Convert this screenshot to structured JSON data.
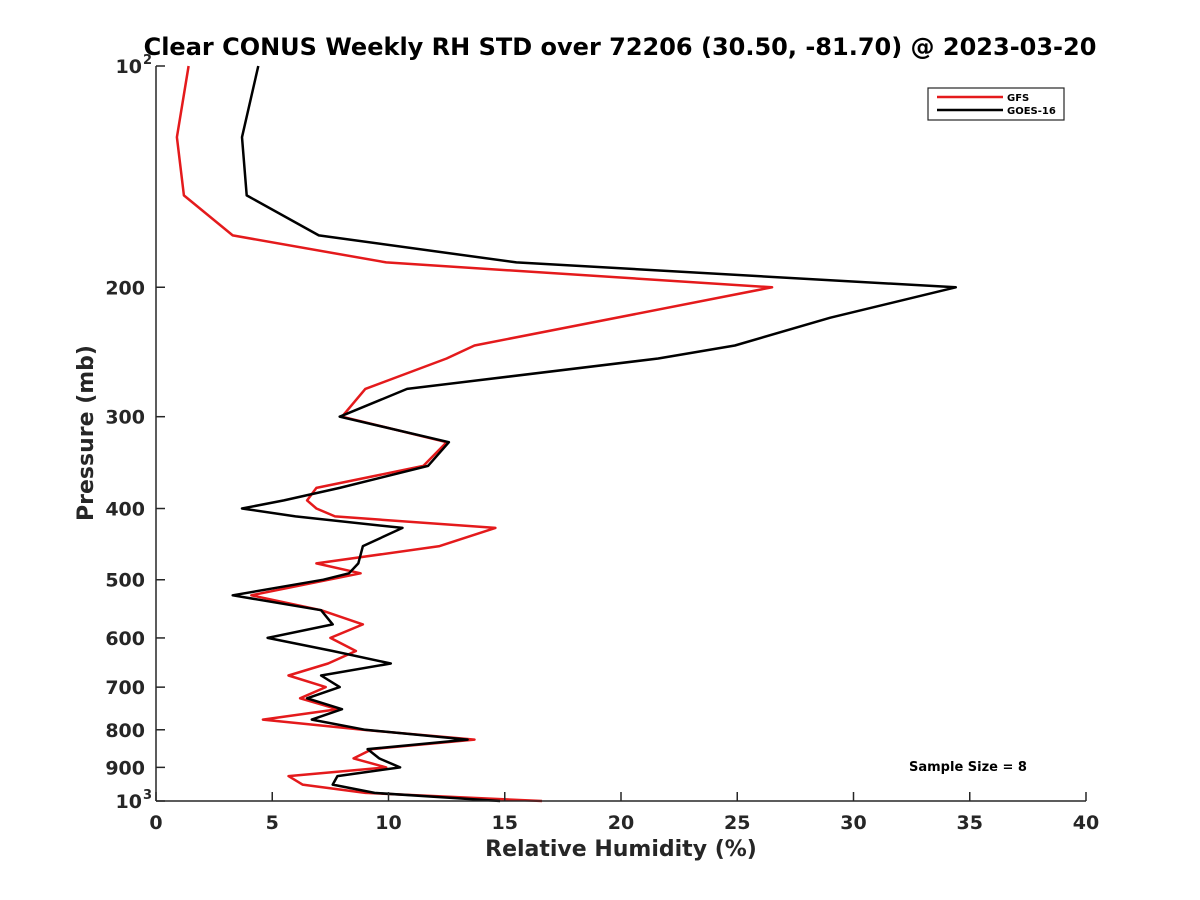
{
  "chart_data": {
    "type": "line",
    "title": "Clear CONUS Weekly RH STD over 72206 (30.50, -81.70) @ 2023-03-20",
    "xlabel": "Relative Humidity (%)",
    "ylabel": "Pressure (mb)",
    "xlim": [
      0,
      40
    ],
    "ylim": [
      100,
      1000
    ],
    "y_scale": "log",
    "y_reversed": true,
    "grid": false,
    "legend_position": "top-right",
    "annotation": "Sample Size = 8",
    "x_ticks": [
      0,
      5,
      10,
      15,
      20,
      25,
      30,
      35,
      40
    ],
    "x_tick_labels": [
      "0",
      "5",
      "10",
      "15",
      "20",
      "25",
      "30",
      "35",
      "40"
    ],
    "y_ticks": [
      100,
      200,
      300,
      400,
      500,
      600,
      700,
      800,
      900,
      1000
    ],
    "y_tick_labels": [
      {
        "base": "10",
        "exp": "2"
      },
      {
        "base": "200",
        "exp": ""
      },
      {
        "base": "300",
        "exp": ""
      },
      {
        "base": "400",
        "exp": ""
      },
      {
        "base": "500",
        "exp": ""
      },
      {
        "base": "600",
        "exp": ""
      },
      {
        "base": "700",
        "exp": ""
      },
      {
        "base": "800",
        "exp": ""
      },
      {
        "base": "900",
        "exp": ""
      },
      {
        "base": "10",
        "exp": "3"
      }
    ],
    "series": [
      {
        "name": "GFS",
        "color": "#e41a1c",
        "points": [
          [
            1.4,
            100
          ],
          [
            0.9,
            125
          ],
          [
            1.2,
            150
          ],
          [
            3.3,
            170
          ],
          [
            9.9,
            185
          ],
          [
            26.5,
            200
          ],
          [
            13.7,
            240
          ],
          [
            12.5,
            250
          ],
          [
            9.0,
            275
          ],
          [
            8.0,
            300
          ],
          [
            12.5,
            325
          ],
          [
            11.5,
            350
          ],
          [
            6.9,
            375
          ],
          [
            6.5,
            390
          ],
          [
            6.9,
            400
          ],
          [
            7.7,
            410
          ],
          [
            14.6,
            425
          ],
          [
            12.2,
            450
          ],
          [
            6.9,
            475
          ],
          [
            8.8,
            490
          ],
          [
            4.1,
            525
          ],
          [
            7.1,
            550
          ],
          [
            8.9,
            575
          ],
          [
            7.5,
            600
          ],
          [
            8.6,
            625
          ],
          [
            7.4,
            650
          ],
          [
            5.7,
            675
          ],
          [
            7.3,
            700
          ],
          [
            6.2,
            725
          ],
          [
            7.8,
            750
          ],
          [
            4.6,
            775
          ],
          [
            8.9,
            800
          ],
          [
            13.7,
            825
          ],
          [
            9.3,
            850
          ],
          [
            8.5,
            875
          ],
          [
            9.9,
            900
          ],
          [
            5.7,
            925
          ],
          [
            6.3,
            950
          ],
          [
            9.0,
            975
          ],
          [
            16.6,
            1000
          ]
        ]
      },
      {
        "name": "GOES-16",
        "color": "#000000",
        "points": [
          [
            4.4,
            100
          ],
          [
            3.7,
            125
          ],
          [
            3.9,
            150
          ],
          [
            7.0,
            170
          ],
          [
            15.5,
            185
          ],
          [
            34.4,
            200
          ],
          [
            29.0,
            220
          ],
          [
            24.9,
            240
          ],
          [
            21.6,
            250
          ],
          [
            10.8,
            275
          ],
          [
            7.9,
            300
          ],
          [
            12.6,
            325
          ],
          [
            11.7,
            350
          ],
          [
            7.9,
            375
          ],
          [
            5.5,
            390
          ],
          [
            3.7,
            400
          ],
          [
            6.0,
            410
          ],
          [
            10.6,
            425
          ],
          [
            8.9,
            450
          ],
          [
            8.7,
            475
          ],
          [
            8.3,
            490
          ],
          [
            7.2,
            500
          ],
          [
            3.3,
            525
          ],
          [
            7.1,
            550
          ],
          [
            7.6,
            575
          ],
          [
            4.8,
            600
          ],
          [
            7.6,
            625
          ],
          [
            10.1,
            650
          ],
          [
            7.1,
            675
          ],
          [
            7.9,
            700
          ],
          [
            6.5,
            725
          ],
          [
            8.0,
            750
          ],
          [
            6.7,
            775
          ],
          [
            9.0,
            800
          ],
          [
            13.4,
            825
          ],
          [
            9.1,
            850
          ],
          [
            9.6,
            875
          ],
          [
            10.5,
            900
          ],
          [
            7.8,
            925
          ],
          [
            7.6,
            950
          ],
          [
            9.4,
            975
          ],
          [
            14.8,
            1000
          ]
        ]
      }
    ]
  }
}
